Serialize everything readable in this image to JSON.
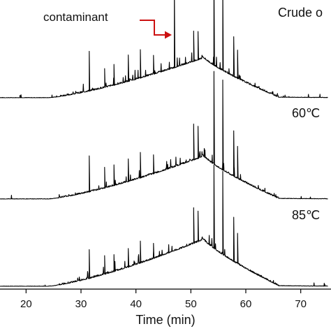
{
  "chart_data": {
    "type": "line",
    "xlabel": "Time (min)",
    "xlim": [
      15,
      75
    ],
    "x_ticks": [
      20,
      30,
      40,
      50,
      60,
      70
    ],
    "grid": false,
    "legend": "none",
    "series": [
      {
        "name": "Crude oil",
        "label": "Crude o",
        "hump_peak_x": 52,
        "peaks": [
          {
            "x": 31.5,
            "height": 0.42
          },
          {
            "x": 34.3,
            "height": 0.2
          },
          {
            "x": 36.0,
            "height": 0.22
          },
          {
            "x": 38.6,
            "height": 0.28
          },
          {
            "x": 40.8,
            "height": 0.3
          },
          {
            "x": 43.2,
            "height": 0.2
          },
          {
            "x": 47.0,
            "height": 0.86
          },
          {
            "x": 50.5,
            "height": 0.32
          },
          {
            "x": 51.3,
            "height": 0.3
          },
          {
            "x": 54.2,
            "height": 0.95
          },
          {
            "x": 55.8,
            "height": 0.92
          },
          {
            "x": 57.8,
            "height": 0.42
          },
          {
            "x": 58.5,
            "height": 0.3
          }
        ]
      },
      {
        "name": "60°C",
        "label": "60℃",
        "hump_peak_x": 52,
        "peaks": [
          {
            "x": 31.5,
            "height": 0.38
          },
          {
            "x": 34.3,
            "height": 0.22
          },
          {
            "x": 36.0,
            "height": 0.22
          },
          {
            "x": 38.6,
            "height": 0.24
          },
          {
            "x": 40.8,
            "height": 0.27
          },
          {
            "x": 43.2,
            "height": 0.2
          },
          {
            "x": 50.5,
            "height": 0.38
          },
          {
            "x": 51.3,
            "height": 0.34
          },
          {
            "x": 54.2,
            "height": 0.98
          },
          {
            "x": 55.8,
            "height": 0.95
          },
          {
            "x": 57.8,
            "height": 0.48
          },
          {
            "x": 58.5,
            "height": 0.34
          }
        ]
      },
      {
        "name": "85°C",
        "label": "85℃",
        "hump_peak_x": 52,
        "peaks": [
          {
            "x": 31.5,
            "height": 0.34
          },
          {
            "x": 34.3,
            "height": 0.22
          },
          {
            "x": 36.0,
            "height": 0.2
          },
          {
            "x": 38.6,
            "height": 0.22
          },
          {
            "x": 40.8,
            "height": 0.26
          },
          {
            "x": 43.2,
            "height": 0.18
          },
          {
            "x": 50.5,
            "height": 0.42
          },
          {
            "x": 51.3,
            "height": 0.36
          },
          {
            "x": 54.2,
            "height": 0.98
          },
          {
            "x": 55.8,
            "height": 0.98
          },
          {
            "x": 57.8,
            "height": 0.52
          },
          {
            "x": 58.5,
            "height": 0.36
          }
        ]
      }
    ],
    "annotations": [
      {
        "text": "contaminant",
        "x": 47.0,
        "color": "#cc1111"
      }
    ]
  }
}
